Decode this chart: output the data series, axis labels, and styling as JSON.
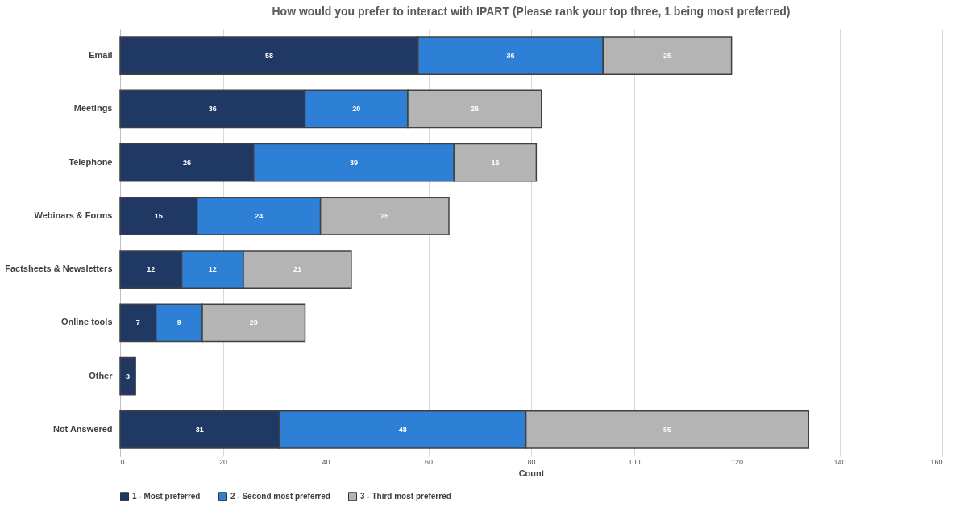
{
  "chart_data": {
    "type": "bar",
    "orientation": "horizontal",
    "stacked": true,
    "title": "How would you prefer to interact with IPART (Please rank your top three, 1 being most preferred)",
    "xlabel": "Count",
    "categories": [
      "Email",
      "Meetings",
      "Telephone",
      "Webinars & Forms",
      "Factsheets & Newsletters",
      "Online tools",
      "Other",
      "Not Answered"
    ],
    "series": [
      {
        "name": "1 - Most preferred",
        "color": "#1f3864",
        "values": [
          58,
          36,
          26,
          15,
          12,
          7,
          3,
          31
        ]
      },
      {
        "name": "2 - Second most preferred",
        "color": "#2e7fd6",
        "values": [
          36,
          20,
          39,
          24,
          12,
          9,
          null,
          48
        ]
      },
      {
        "name": "3 - Third most preferred",
        "color": "#b4b4b4",
        "values": [
          25,
          26,
          16,
          25,
          21,
          20,
          null,
          55
        ]
      }
    ],
    "xlim": [
      0,
      160
    ],
    "xticks": [
      0,
      20,
      40,
      60,
      80,
      100,
      120,
      140,
      160
    ],
    "grid": "x",
    "legend": "bottom",
    "data_labels": true
  }
}
